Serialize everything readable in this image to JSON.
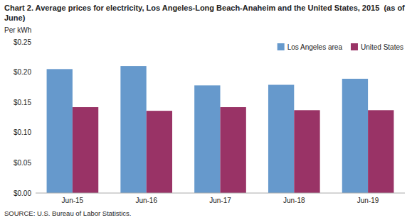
{
  "chart_data": {
    "type": "bar",
    "title": "Chart 2. Average prices for electricity, Los Angeles-Long Beach-Anaheim and the United States, 2015  (as of June)",
    "ylabel": "Per kWh",
    "source": "SOURCE: U.S. Bureau of Labor Statistics.",
    "categories": [
      "Jun-15",
      "Jun-16",
      "Jun-17",
      "Jun-18",
      "Jun-19"
    ],
    "series": [
      {
        "name": "Los Angeles area",
        "color": "#6699CC",
        "values": [
          0.205,
          0.21,
          0.178,
          0.179,
          0.189
        ]
      },
      {
        "name": "United States",
        "color": "#993366",
        "values": [
          0.142,
          0.136,
          0.142,
          0.137,
          0.137
        ]
      }
    ],
    "ylim": [
      0,
      0.25
    ],
    "yticks": [
      {
        "value": 0.0,
        "label": "$0.00"
      },
      {
        "value": 0.05,
        "label": "$0.05"
      },
      {
        "value": 0.1,
        "label": "$0.10"
      },
      {
        "value": 0.15,
        "label": "$0.15"
      },
      {
        "value": 0.2,
        "label": "$0.20"
      },
      {
        "value": 0.25,
        "label": "$0.25"
      }
    ],
    "grid": false,
    "legend": "upper right"
  }
}
